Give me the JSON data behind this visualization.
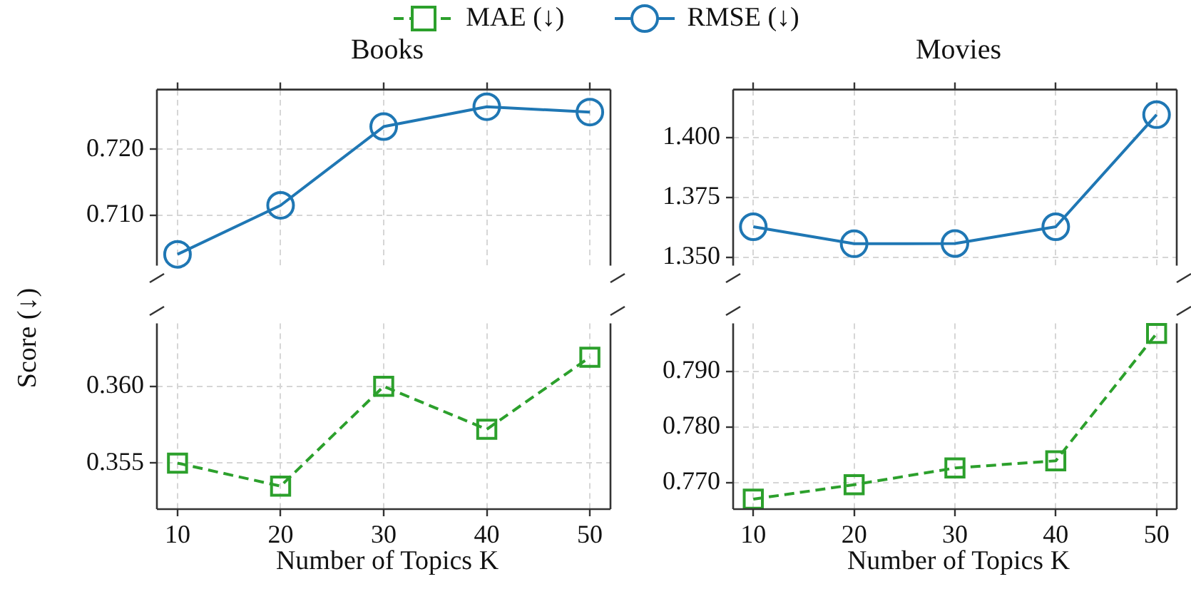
{
  "chart_data": [
    {
      "type": "line",
      "title": "Books",
      "ylabel": "Score (↓)",
      "x": [
        10,
        20,
        30,
        40,
        50
      ],
      "xlim": [
        8,
        52
      ],
      "xticks": [
        10,
        20,
        30,
        40,
        50
      ],
      "ylim": [
        0.7024,
        0.729
      ],
      "yticks": [
        {
          "value": 0.71,
          "label": "0.710"
        },
        {
          "value": 0.72,
          "label": "0.720"
        }
      ],
      "tick_labels": "y",
      "grid": true,
      "legend": "top",
      "marker": "circle",
      "line_style": "solid",
      "series": [
        {
          "name": "RMSE (↓)",
          "color": "#1f77b4",
          "values": [
            0.7041,
            0.7115,
            0.7234,
            0.7264,
            0.7256
          ]
        }
      ]
    },
    {
      "type": "line",
      "title": "Movies",
      "x": [
        10,
        20,
        30,
        40,
        50
      ],
      "xlim": [
        8,
        52
      ],
      "xticks": [
        10,
        20,
        30,
        40,
        50
      ],
      "ylim": [
        1.3465,
        1.42
      ],
      "yticks": [
        {
          "value": 1.35,
          "label": "1.350"
        },
        {
          "value": 1.375,
          "label": "1.375"
        },
        {
          "value": 1.4,
          "label": "1.400"
        }
      ],
      "tick_labels": "y",
      "grid": true,
      "marker": "circle",
      "line_style": "solid",
      "series": [
        {
          "color": "#1f77b4",
          "values": [
            1.3627,
            1.3556,
            1.3557,
            1.3627,
            1.4095
          ]
        }
      ]
    },
    {
      "type": "line",
      "xlabel": "Number of Topics K",
      "x": [
        10,
        20,
        30,
        40,
        50
      ],
      "xlim": [
        8,
        52
      ],
      "xticks": [
        10,
        20,
        30,
        40,
        50
      ],
      "ylim": [
        0.352,
        0.3641
      ],
      "yticks": [
        {
          "value": 0.355,
          "label": "0.355"
        },
        {
          "value": 0.36,
          "label": "0.360"
        }
      ],
      "grid": true,
      "legend": "top",
      "marker": "square",
      "line_style": "dashed",
      "series": [
        {
          "name": "MAE (↓)",
          "color": "#2ca02c",
          "values": [
            0.355,
            0.3535,
            0.36,
            0.3572,
            0.3619
          ]
        }
      ]
    },
    {
      "type": "line",
      "xlabel": "Number of Topics K",
      "x": [
        10,
        20,
        30,
        40,
        50
      ],
      "xlim": [
        8,
        52
      ],
      "xticks": [
        10,
        20,
        30,
        40,
        50
      ],
      "ylim": [
        0.7652,
        0.7986
      ],
      "yticks": [
        {
          "value": 0.77,
          "label": "0.770"
        },
        {
          "value": 0.78,
          "label": "0.780"
        },
        {
          "value": 0.79,
          "label": "0.790"
        }
      ],
      "grid": true,
      "marker": "square",
      "line_style": "dashed",
      "series": [
        {
          "color": "#2ca02c",
          "values": [
            0.767,
            0.7696,
            0.7726,
            0.7739,
            0.7968
          ]
        }
      ]
    }
  ]
}
